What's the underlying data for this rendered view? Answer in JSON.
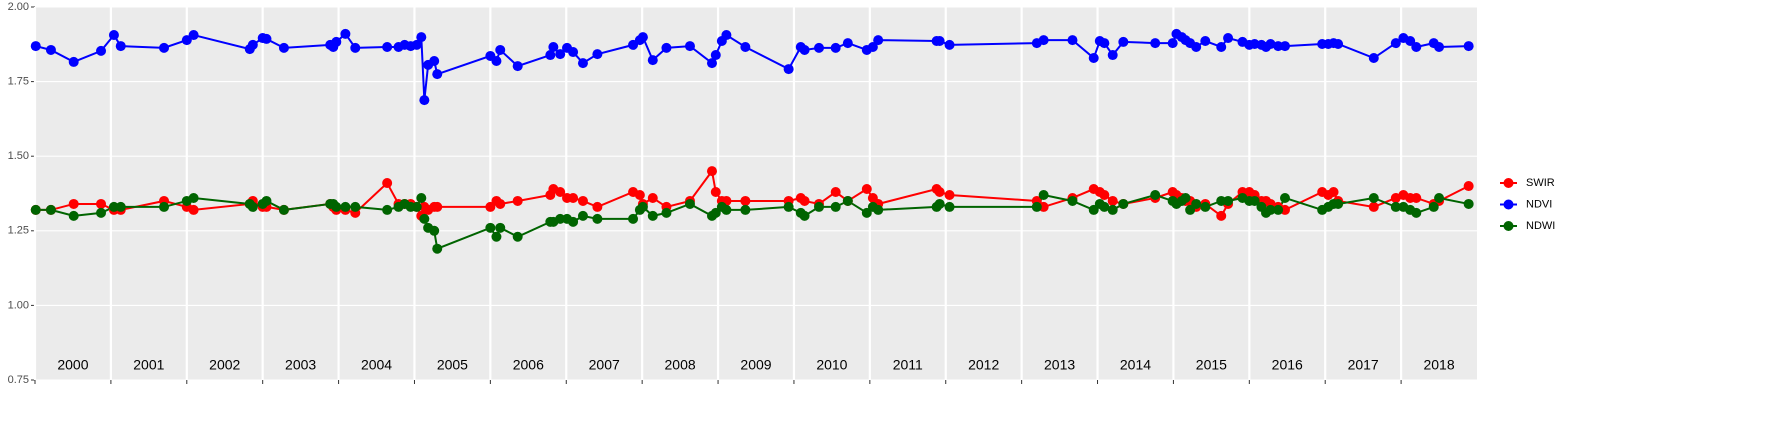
{
  "chart_data": {
    "type": "line",
    "x": [
      2000.01,
      2000.21,
      2000.51,
      2000.87,
      2001.04,
      2001.13,
      2001.7,
      2002.0,
      2002.09,
      2002.83,
      2002.87,
      2003.0,
      2003.05,
      2003.28,
      2003.89,
      2003.93,
      2003.97,
      2004.09,
      2004.22,
      2004.64,
      2004.79,
      2004.87,
      2004.95,
      2005.03,
      2005.09,
      2005.13,
      2005.18,
      2005.26,
      2005.3,
      2006.0,
      2006.08,
      2006.13,
      2006.36,
      2006.79,
      2006.83,
      2006.92,
      2007.01,
      2007.09,
      2007.22,
      2007.41,
      2007.88,
      2007.97,
      2008.01,
      2008.14,
      2008.32,
      2008.63,
      2008.92,
      2008.97,
      2009.05,
      2009.11,
      2009.36,
      2009.93,
      2010.09,
      2010.14,
      2010.33,
      2010.55,
      2010.71,
      2010.96,
      2011.04,
      2011.11,
      2011.88,
      2011.92,
      2012.05,
      2013.2,
      2013.29,
      2013.67,
      2013.95,
      2014.03,
      2014.09,
      2014.2,
      2014.34,
      2014.76,
      2014.99,
      2015.04,
      2015.11,
      2015.16,
      2015.22,
      2015.3,
      2015.42,
      2015.63,
      2015.72,
      2015.91,
      2016.0,
      2016.07,
      2016.16,
      2016.22,
      2016.28,
      2016.38,
      2016.47,
      2016.96,
      2017.04,
      2017.11,
      2017.17,
      2017.64,
      2017.93,
      2018.03,
      2018.12,
      2018.2,
      2018.43,
      2018.5,
      2018.89
    ],
    "series": [
      {
        "name": "SWIR",
        "color": "#ff0000",
        "values": [
          1.32,
          1.32,
          1.34,
          1.34,
          1.32,
          1.32,
          1.35,
          1.33,
          1.32,
          1.34,
          1.35,
          1.33,
          1.33,
          1.32,
          1.34,
          1.33,
          1.32,
          1.32,
          1.31,
          1.41,
          1.34,
          1.34,
          1.34,
          1.33,
          1.3,
          1.33,
          1.32,
          1.33,
          1.33,
          1.33,
          1.35,
          1.34,
          1.35,
          1.37,
          1.39,
          1.38,
          1.36,
          1.36,
          1.35,
          1.33,
          1.38,
          1.37,
          1.34,
          1.36,
          1.33,
          1.35,
          1.45,
          1.38,
          1.35,
          1.35,
          1.35,
          1.35,
          1.36,
          1.35,
          1.34,
          1.38,
          1.35,
          1.39,
          1.36,
          1.34,
          1.39,
          1.38,
          1.37,
          1.35,
          1.33,
          1.36,
          1.39,
          1.38,
          1.37,
          1.35,
          1.34,
          1.36,
          1.38,
          1.37,
          1.36,
          1.35,
          1.35,
          1.33,
          1.34,
          1.3,
          1.34,
          1.38,
          1.38,
          1.37,
          1.35,
          1.35,
          1.34,
          1.33,
          1.32,
          1.38,
          1.37,
          1.38,
          1.35,
          1.33,
          1.36,
          1.37,
          1.36,
          1.36,
          1.34,
          1.35,
          1.4
        ]
      },
      {
        "name": "NDVI",
        "color": "#0000ff",
        "values": [
          1.869,
          1.856,
          1.816,
          1.853,
          1.906,
          1.869,
          1.863,
          1.889,
          1.906,
          1.859,
          1.873,
          1.896,
          1.893,
          1.863,
          1.873,
          1.866,
          1.883,
          1.91,
          1.863,
          1.866,
          1.866,
          1.873,
          1.869,
          1.873,
          1.899,
          1.688,
          1.806,
          1.819,
          1.775,
          1.836,
          1.819,
          1.856,
          1.802,
          1.839,
          1.866,
          1.842,
          1.863,
          1.849,
          1.812,
          1.842,
          1.873,
          1.889,
          1.899,
          1.822,
          1.863,
          1.869,
          1.812,
          1.839,
          1.886,
          1.906,
          1.866,
          1.792,
          1.866,
          1.856,
          1.863,
          1.863,
          1.879,
          1.856,
          1.866,
          1.889,
          1.886,
          1.886,
          1.873,
          1.879,
          1.889,
          1.889,
          1.829,
          1.886,
          1.879,
          1.839,
          1.883,
          1.879,
          1.879,
          1.91,
          1.899,
          1.889,
          1.879,
          1.866,
          1.886,
          1.866,
          1.896,
          1.883,
          1.873,
          1.876,
          1.873,
          1.866,
          1.876,
          1.869,
          1.869,
          1.876,
          1.876,
          1.879,
          1.876,
          1.829,
          1.879,
          1.896,
          1.886,
          1.866,
          1.879,
          1.866,
          1.869
        ]
      },
      {
        "name": "NDWI",
        "color": "#006400",
        "values": [
          1.32,
          1.32,
          1.3,
          1.31,
          1.33,
          1.33,
          1.33,
          1.35,
          1.36,
          1.34,
          1.33,
          1.34,
          1.35,
          1.32,
          1.34,
          1.34,
          1.33,
          1.33,
          1.33,
          1.32,
          1.33,
          1.34,
          1.33,
          1.33,
          1.36,
          1.29,
          1.26,
          1.25,
          1.19,
          1.26,
          1.23,
          1.26,
          1.23,
          1.28,
          1.28,
          1.29,
          1.29,
          1.28,
          1.3,
          1.29,
          1.29,
          1.32,
          1.33,
          1.3,
          1.31,
          1.34,
          1.3,
          1.31,
          1.33,
          1.32,
          1.32,
          1.33,
          1.31,
          1.3,
          1.33,
          1.33,
          1.35,
          1.31,
          1.33,
          1.32,
          1.33,
          1.34,
          1.33,
          1.33,
          1.37,
          1.35,
          1.32,
          1.34,
          1.33,
          1.32,
          1.34,
          1.37,
          1.35,
          1.34,
          1.35,
          1.36,
          1.32,
          1.34,
          1.33,
          1.35,
          1.35,
          1.36,
          1.35,
          1.35,
          1.33,
          1.31,
          1.32,
          1.32,
          1.36,
          1.32,
          1.33,
          1.34,
          1.34,
          1.36,
          1.33,
          1.33,
          1.32,
          1.31,
          1.33,
          1.36,
          1.34
        ]
      }
    ],
    "xlim": [
      2000,
      2019
    ],
    "xticks": [
      {
        "value": 2000,
        "label": "2000"
      },
      {
        "value": 2001,
        "label": "2001"
      },
      {
        "value": 2002,
        "label": "2002"
      },
      {
        "value": 2003,
        "label": "2003"
      },
      {
        "value": 2004,
        "label": "2004"
      },
      {
        "value": 2005,
        "label": "2005"
      },
      {
        "value": 2006,
        "label": "2006"
      },
      {
        "value": 2007,
        "label": "2007"
      },
      {
        "value": 2008,
        "label": "2008"
      },
      {
        "value": 2009,
        "label": "2009"
      },
      {
        "value": 2010,
        "label": "2010"
      },
      {
        "value": 2011,
        "label": "2011"
      },
      {
        "value": 2012,
        "label": "2012"
      },
      {
        "value": 2013,
        "label": "2013"
      },
      {
        "value": 2014,
        "label": "2014"
      },
      {
        "value": 2015,
        "label": "2015"
      },
      {
        "value": 2016,
        "label": "2016"
      },
      {
        "value": 2017,
        "label": "2017"
      },
      {
        "value": 2018,
        "label": "2018"
      }
    ],
    "ylim": [
      0.75,
      2.0
    ],
    "yticks": [
      0.75,
      {
        "value": 1.0,
        "label": "1.00"
      },
      1.25,
      {
        "value": 1.5,
        "label": "1.50"
      },
      1.75,
      {
        "value": 2.0,
        "label": "2.00"
      }
    ],
    "grid": true,
    "legend": "right"
  }
}
